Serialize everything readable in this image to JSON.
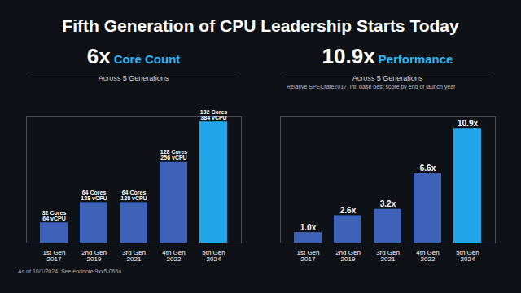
{
  "title": "Fifth Generation of CPU Leadership Starts Today",
  "footnote": "As of 10/1/2024. See endnote 9xx5-065a",
  "chart_data": [
    {
      "type": "bar",
      "headline": "6x",
      "title": "Core Count",
      "subtitle": "Across 5 Generations",
      "categories": [
        "1st Gen\n2017",
        "2nd Gen\n2019",
        "3rd Gen\n2021",
        "4th Gen\n2022",
        "5th Gen\n2024"
      ],
      "values": [
        32,
        64,
        64,
        128,
        192
      ],
      "value_labels": [
        "32 Cores\n64 vCPU",
        "64 Cores\n128 vCPU",
        "64 Cores\n128 vCPU",
        "128 Cores\n256 vCPU",
        "192 Cores\n384 vCPU"
      ],
      "colors": [
        "#3d62b8",
        "#3d62b8",
        "#3d62b8",
        "#3d62b8",
        "#22a6ea"
      ],
      "ylim": [
        0,
        200
      ],
      "yticks": [],
      "tick_labels": "x",
      "data_labels": true
    },
    {
      "type": "bar",
      "headline": "10.9x",
      "title": "Performance",
      "subtitle": "Across 5 Generations",
      "note": "Relative SPECrate2017_int_base best score by end of launch year",
      "categories": [
        "1st Gen\n2017",
        "2nd Gen\n2019",
        "3rd Gen\n2021",
        "4th Gen\n2022",
        "5th Gen\n2024"
      ],
      "values": [
        1.0,
        2.6,
        3.2,
        6.6,
        10.9
      ],
      "value_labels": [
        "1.0x",
        "2.6x",
        "3.2x",
        "6.6x",
        "10.9x"
      ],
      "colors": [
        "#3d62b8",
        "#3d62b8",
        "#3d62b8",
        "#3d62b8",
        "#22a6ea"
      ],
      "ylim": [
        0,
        12
      ],
      "yticks": [],
      "tick_labels": "x",
      "data_labels": true
    }
  ]
}
